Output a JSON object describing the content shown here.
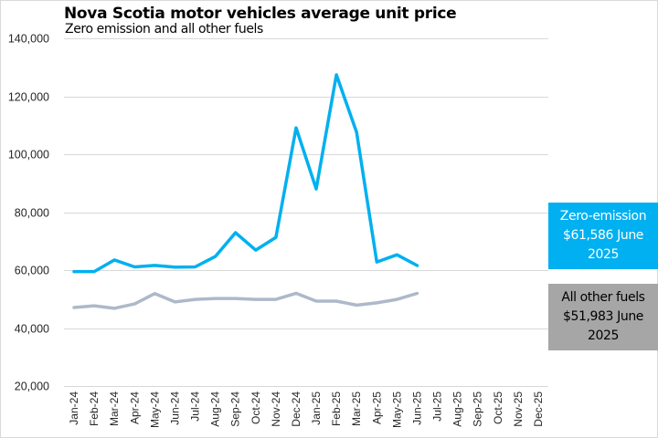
{
  "chart_data": {
    "type": "line",
    "title": "Nova Scotia motor vehicles average unit price",
    "subtitle": "Zero emission and  all other fuels",
    "xlabel": "",
    "ylabel": "",
    "ylim": [
      20000,
      140000
    ],
    "yticks": [
      20000,
      40000,
      60000,
      80000,
      100000,
      120000,
      140000
    ],
    "ytick_labels": [
      "20,000",
      "40,000",
      "60,000",
      "80,000",
      "100,000",
      "120,000",
      "140,000"
    ],
    "grid": true,
    "categories": [
      "Jan-24",
      "Feb-24",
      "Mar-24",
      "Apr-24",
      "May-24",
      "Jun-24",
      "Jul-24",
      "Aug-24",
      "Sep-24",
      "Oct-24",
      "Nov-24",
      "Dec-24",
      "Jan-25",
      "Feb-25",
      "Mar-25",
      "Apr-25",
      "May-25",
      "Jun-25",
      "Jul-25",
      "Aug-25",
      "Sep-25",
      "Oct-25",
      "Nov-25",
      "Dec-25"
    ],
    "series": [
      {
        "name": "Zero-emission",
        "color": "#00b0f0",
        "values": [
          59500,
          59500,
          63500,
          61100,
          61600,
          61000,
          61100,
          64700,
          72900,
          66900,
          71300,
          109100,
          88000,
          127400,
          107600,
          62800,
          65300,
          61586,
          null,
          null,
          null,
          null,
          null,
          null
        ]
      },
      {
        "name": "All other fuels",
        "color": "#adb9ca",
        "values": [
          47100,
          47700,
          46800,
          48300,
          51900,
          49000,
          49900,
          50200,
          50200,
          49900,
          49900,
          52000,
          49300,
          49300,
          47900,
          48700,
          49900,
          51983,
          null,
          null,
          null,
          null,
          null,
          null
        ]
      }
    ],
    "legend": "right",
    "annotations": [
      {
        "series": "Zero-emission",
        "lines": [
          "Zero-emission",
          "$61,586 June",
          "2025"
        ],
        "background": "#00b0f0",
        "text_color": "#ffffff"
      },
      {
        "series": "All other fuels",
        "lines": [
          "All other fuels",
          "$51,983 June",
          "2025"
        ],
        "background": "#a6a6a6",
        "text_color": "#000000"
      }
    ]
  }
}
